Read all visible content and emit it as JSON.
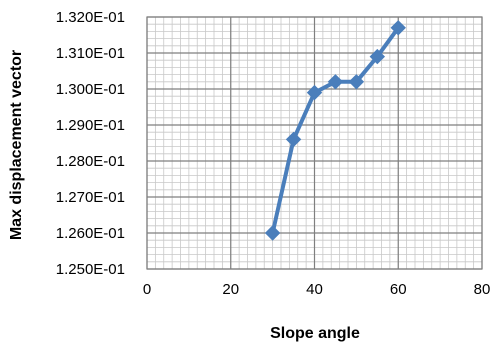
{
  "chart_data": {
    "type": "line",
    "title": "",
    "xlabel": "Slope angle",
    "ylabel": "Max displacement vector",
    "xlim": [
      0,
      80
    ],
    "ylim": [
      0.125,
      0.132
    ],
    "x_ticks": [
      0,
      20,
      40,
      60,
      80
    ],
    "y_ticks": [
      0.125,
      0.126,
      0.127,
      0.128,
      0.129,
      0.13,
      0.131,
      0.132
    ],
    "y_tick_labels": [
      "1.250E-01",
      "1.260E-01",
      "1.270E-01",
      "1.280E-01",
      "1.290E-01",
      "1.300E-01",
      "1.310E-01",
      "1.320E-01"
    ],
    "grid": true,
    "marker": "diamond",
    "series": [
      {
        "color": "#4a7ebb",
        "x": [
          30,
          35,
          40,
          45,
          50,
          55,
          60
        ],
        "y": [
          0.126,
          0.1286,
          0.1299,
          0.1302,
          0.1302,
          0.1309,
          0.1317
        ]
      }
    ]
  }
}
